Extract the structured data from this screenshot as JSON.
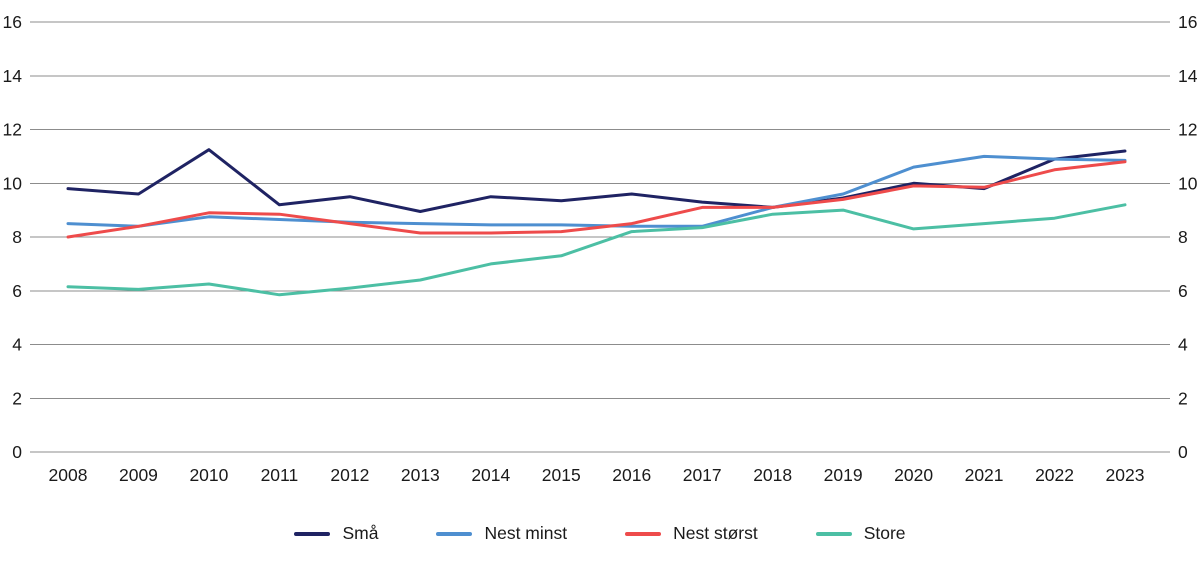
{
  "chart_data": {
    "type": "line",
    "title": "",
    "xlabel": "",
    "ylabel": "",
    "x": [
      2008,
      2009,
      2010,
      2011,
      2012,
      2013,
      2014,
      2015,
      2016,
      2017,
      2018,
      2019,
      2020,
      2021,
      2022,
      2023
    ],
    "series": [
      {
        "name": "Små",
        "color": "#1f2363",
        "values": [
          9.8,
          9.6,
          11.25,
          9.2,
          9.5,
          8.95,
          9.5,
          9.35,
          9.6,
          9.3,
          9.1,
          9.45,
          10.0,
          9.8,
          10.9,
          11.2
        ]
      },
      {
        "name": "Nest minst",
        "color": "#4e8fd0",
        "values": [
          8.5,
          8.4,
          8.75,
          8.65,
          8.55,
          8.5,
          8.45,
          8.45,
          8.4,
          8.4,
          9.1,
          9.6,
          10.6,
          11.0,
          10.9,
          10.85
        ]
      },
      {
        "name": "Nest størst",
        "color": "#ee4b4b",
        "values": [
          8.0,
          8.4,
          8.9,
          8.85,
          8.5,
          8.15,
          8.15,
          8.2,
          8.5,
          9.1,
          9.1,
          9.4,
          9.9,
          9.85,
          10.5,
          10.8
        ]
      },
      {
        "name": "Store",
        "color": "#4cbfa4",
        "values": [
          6.15,
          6.05,
          6.25,
          5.85,
          6.1,
          6.4,
          7.0,
          7.3,
          8.2,
          8.35,
          8.85,
          9.0,
          8.3,
          8.5,
          8.7,
          9.2
        ]
      }
    ],
    "ylim": [
      0,
      16
    ],
    "yticks": [
      0,
      2,
      4,
      6,
      8,
      10,
      12,
      14,
      16
    ],
    "y_axis_sides": [
      "left",
      "right"
    ],
    "grid": true,
    "legend_position": "bottom"
  }
}
